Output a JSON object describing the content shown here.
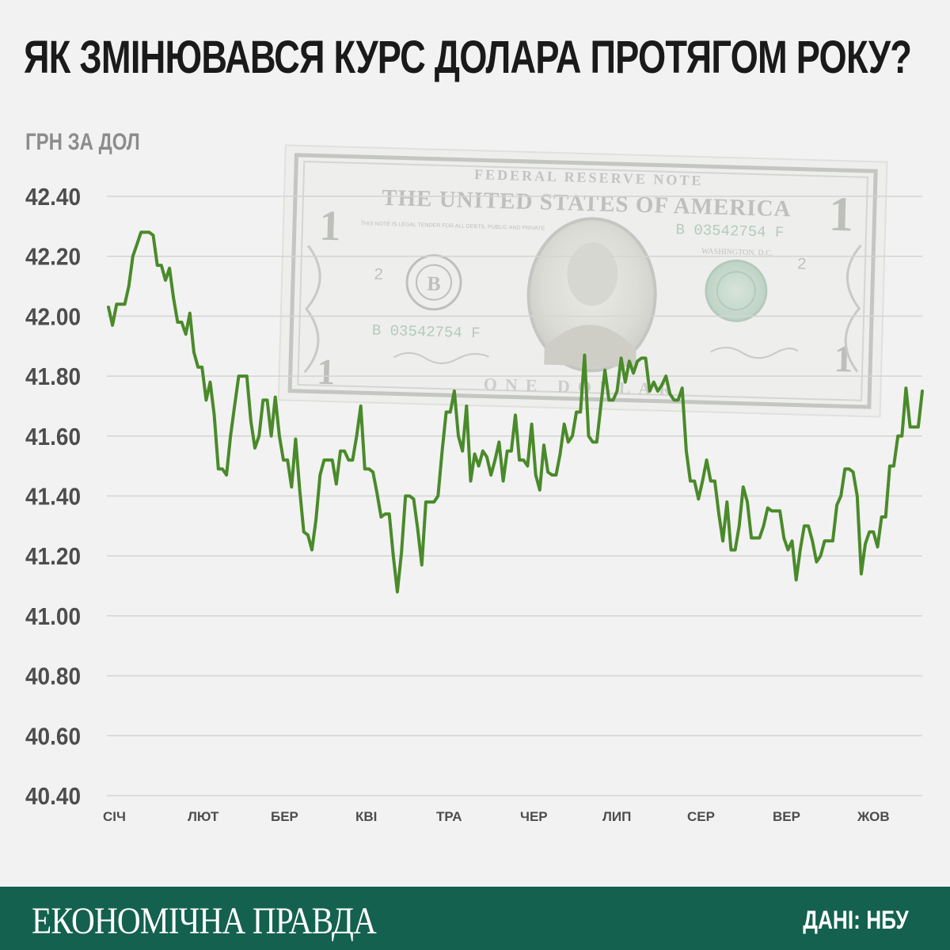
{
  "header": {
    "title": "ЯК ЗМІНЮВАВСЯ КУРС ДОЛАРА ПРОТЯГОМ РОКУ?"
  },
  "footer": {
    "brand": "ЕКОНОМІЧНА ПРАВДА",
    "source": "ДАНІ: НБУ"
  },
  "banknote": {
    "top_text": "FEDERAL RESERVE NOTE",
    "country_text": "THE UNITED STATES OF AMERICA",
    "serial": "B 03542754 F",
    "bottom_text": "ONE DOLLAR",
    "denomination": "1",
    "city": "WASHINGTON, D.C.",
    "legal_tender": "THIS NOTE IS LEGAL TENDER FOR ALL DEBTS, PUBLIC AND PRIVATE",
    "plate": "2",
    "seal_letter": "B"
  },
  "colors": {
    "line": "#4a8a2a",
    "footer": "#14614f",
    "grid": "#d4d4d4",
    "tick_text": "#4d4d4d"
  },
  "chart_data": {
    "type": "line",
    "title": "ЯК ЗМІНЮВАВСЯ КУРС ДОЛАРА ПРОТЯГОМ РОКУ?",
    "ylabel": "ГРН ЗА ДОЛ",
    "xlabel": "",
    "ylim": [
      40.4,
      42.4
    ],
    "yticks": [
      "42.40",
      "42.20",
      "42.00",
      "41.80",
      "41.60",
      "41.40",
      "41.20",
      "41.00",
      "40.80",
      "40.60",
      "40.40"
    ],
    "ytick_values": [
      42.4,
      42.2,
      42.0,
      41.8,
      41.6,
      41.4,
      41.2,
      41.0,
      40.8,
      40.6,
      40.4
    ],
    "months": [
      "СІЧ",
      "ЛЮТ",
      "БЕР",
      "КВІ",
      "ТРА",
      "ЧЕР",
      "ЛИП",
      "СЕР",
      "ВЕР",
      "ЖОВ"
    ],
    "grid": true,
    "series": [
      {
        "values": [
          42.03,
          41.97,
          42.04,
          42.04,
          42.04,
          42.1,
          42.2,
          42.24,
          42.28,
          42.28,
          42.28,
          42.27,
          42.17,
          42.17,
          42.12,
          42.16,
          42.06,
          41.98,
          41.98,
          41.94,
          42.01,
          41.88,
          41.83,
          41.83,
          41.72,
          41.78,
          41.67,
          41.49,
          41.49,
          41.47,
          41.6,
          41.7,
          41.8,
          41.8,
          41.8,
          41.65,
          41.56,
          41.6,
          41.72,
          41.72,
          41.6,
          41.73,
          41.6,
          41.52,
          41.52,
          41.43,
          41.59,
          41.42,
          41.28,
          41.27,
          41.22,
          41.32,
          41.47,
          41.52,
          41.52,
          41.52,
          41.44,
          41.55,
          41.55,
          41.52,
          41.52,
          41.6,
          41.7,
          41.49,
          41.49,
          41.48,
          41.41,
          41.33,
          41.34,
          41.34,
          41.2,
          41.08,
          41.21,
          41.4,
          41.4,
          41.39,
          41.29,
          41.17,
          41.38,
          41.38,
          41.38,
          41.4,
          41.55,
          41.68,
          41.68,
          41.75,
          41.6,
          41.55,
          41.7,
          41.45,
          41.54,
          41.5,
          41.55,
          41.53,
          41.47,
          41.52,
          41.58,
          41.45,
          41.55,
          41.55,
          41.67,
          41.52,
          41.52,
          41.5,
          41.64,
          41.47,
          41.42,
          41.57,
          41.48,
          41.47,
          41.47,
          41.54,
          41.64,
          41.58,
          41.6,
          41.68,
          41.68,
          41.87,
          41.6,
          41.58,
          41.58,
          41.7,
          41.82,
          41.72,
          41.72,
          41.75,
          41.86,
          41.78,
          41.85,
          41.81,
          41.85,
          41.86,
          41.86,
          41.75,
          41.78,
          41.75,
          41.77,
          41.8,
          41.74,
          41.72,
          41.72,
          41.76,
          41.55,
          41.45,
          41.45,
          41.39,
          41.45,
          41.52,
          41.45,
          41.45,
          41.34,
          41.25,
          41.38,
          41.22,
          41.22,
          41.3,
          41.43,
          41.38,
          41.26,
          41.26,
          41.26,
          41.3,
          41.36,
          41.35,
          41.35,
          41.35,
          41.26,
          41.22,
          41.25,
          41.12,
          41.22,
          41.3,
          41.3,
          41.25,
          41.18,
          41.2,
          41.25,
          41.25,
          41.25,
          41.37,
          41.4,
          41.49,
          41.49,
          41.48,
          41.4,
          41.14,
          41.24,
          41.28,
          41.28,
          41.23,
          41.33,
          41.33,
          41.5,
          41.5,
          41.6,
          41.6,
          41.76,
          41.63,
          41.63,
          41.63,
          41.75
        ]
      }
    ]
  }
}
